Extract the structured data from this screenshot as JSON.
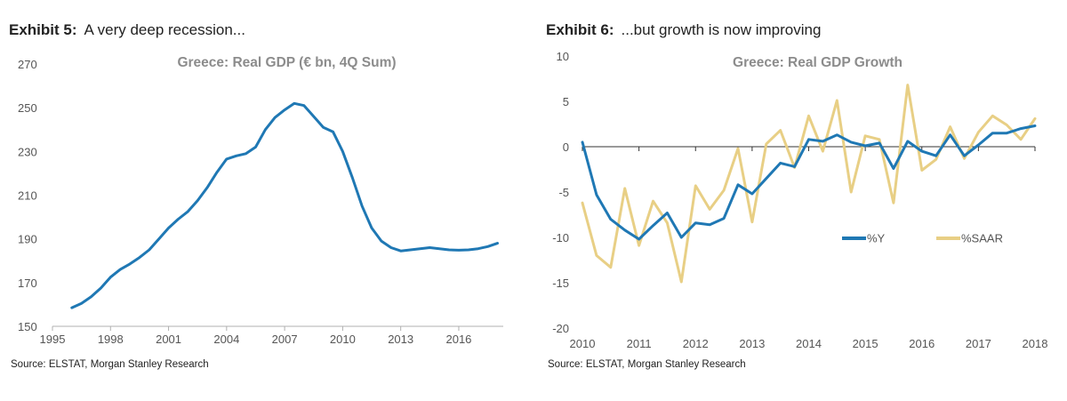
{
  "exhibits": [
    {
      "number": "Exhibit 5:",
      "caption": "A very deep recession...",
      "source": "Source: ELSTAT, Morgan Stanley Research"
    },
    {
      "number": "Exhibit 6:",
      "caption": "...but growth is now improving",
      "source": "Source: ELSTAT, Morgan Stanley Research"
    }
  ],
  "chart_data": [
    {
      "type": "line",
      "title": "Greece: Real GDP (€ bn, 4Q Sum)",
      "xlabel": "",
      "ylabel": "",
      "xlim": [
        1995,
        2018.3
      ],
      "ylim": [
        150,
        270
      ],
      "yticks": [
        150,
        170,
        190,
        210,
        230,
        250,
        270
      ],
      "xticks": [
        1995,
        1998,
        2001,
        2004,
        2007,
        2010,
        2013,
        2016
      ],
      "grid": false,
      "colors": {
        "line": "#1f78b4",
        "axis": "#b0b0b0"
      },
      "series": [
        {
          "color": "#1f78b4",
          "x": [
            1996.0,
            1996.5,
            1997.0,
            1997.5,
            1998.0,
            1998.5,
            1999.0,
            1999.5,
            2000.0,
            2000.5,
            2001.0,
            2001.5,
            2002.0,
            2002.5,
            2003.0,
            2003.5,
            2004.0,
            2004.5,
            2005.0,
            2005.5,
            2006.0,
            2006.5,
            2007.0,
            2007.5,
            2008.0,
            2008.5,
            2009.0,
            2009.5,
            2010.0,
            2010.5,
            2011.0,
            2011.5,
            2012.0,
            2012.5,
            2013.0,
            2013.5,
            2014.0,
            2014.5,
            2015.0,
            2015.5,
            2016.0,
            2016.5,
            2017.0,
            2017.5,
            2018.0
          ],
          "values": [
            158.5,
            160.5,
            163.5,
            167.5,
            172.5,
            176.0,
            178.5,
            181.5,
            185.0,
            190.0,
            195.0,
            199.0,
            202.5,
            207.5,
            213.5,
            220.5,
            226.5,
            228.0,
            229.0,
            232.0,
            240.0,
            245.5,
            249.0,
            252.0,
            251.0,
            246.0,
            241.0,
            239.0,
            230.0,
            218.0,
            205.0,
            195.0,
            189.0,
            186.0,
            184.5,
            185.0,
            185.5,
            186.0,
            185.5,
            185.0,
            184.8,
            185.0,
            185.5,
            186.5,
            188.0
          ]
        }
      ]
    },
    {
      "type": "line",
      "title": "Greece: Real GDP Growth",
      "xlabel": "",
      "ylabel": "",
      "xlim": [
        2010,
        2018
      ],
      "ylim": [
        -20,
        10
      ],
      "yticks": [
        -20,
        -15,
        -10,
        -5,
        0,
        5,
        10
      ],
      "xticks": [
        2010,
        2011,
        2012,
        2013,
        2014,
        2015,
        2016,
        2017,
        2018
      ],
      "grid": false,
      "legend": "center-right",
      "series": [
        {
          "name": "%Y",
          "color": "#1f78b4",
          "x": [
            2010.0,
            2010.25,
            2010.5,
            2010.75,
            2011.0,
            2011.25,
            2011.5,
            2011.75,
            2012.0,
            2012.25,
            2012.5,
            2012.75,
            2013.0,
            2013.25,
            2013.5,
            2013.75,
            2014.0,
            2014.25,
            2014.5,
            2014.75,
            2015.0,
            2015.25,
            2015.5,
            2015.75,
            2016.0,
            2016.25,
            2016.5,
            2016.75,
            2017.0,
            2017.25,
            2017.5,
            2017.75,
            2018.0
          ],
          "values": [
            0.5,
            -5.3,
            -8.0,
            -9.2,
            -10.2,
            -8.7,
            -7.3,
            -10.0,
            -8.4,
            -8.6,
            -7.9,
            -4.2,
            -5.2,
            -3.5,
            -1.8,
            -2.2,
            0.8,
            0.6,
            1.3,
            0.5,
            0.1,
            0.4,
            -2.4,
            0.6,
            -0.5,
            -1.0,
            1.3,
            -1.0,
            0.2,
            1.5,
            1.5,
            2.0,
            2.3
          ]
        },
        {
          "name": "%SAAR",
          "color": "#e8cf85",
          "x": [
            2010.0,
            2010.25,
            2010.5,
            2010.75,
            2011.0,
            2011.25,
            2011.5,
            2011.75,
            2012.0,
            2012.25,
            2012.5,
            2012.75,
            2013.0,
            2013.25,
            2013.5,
            2013.75,
            2014.0,
            2014.25,
            2014.5,
            2014.75,
            2015.0,
            2015.25,
            2015.5,
            2015.75,
            2016.0,
            2016.25,
            2016.5,
            2016.75,
            2017.0,
            2017.25,
            2017.5,
            2017.75,
            2018.0
          ],
          "values": [
            -6.2,
            -12.0,
            -13.3,
            -4.6,
            -10.9,
            -6.0,
            -8.4,
            -14.9,
            -4.3,
            -6.9,
            -4.8,
            -0.2,
            -8.3,
            0.3,
            1.8,
            -2.3,
            3.4,
            -0.5,
            5.1,
            -5.0,
            1.2,
            0.8,
            -6.2,
            6.8,
            -2.6,
            -1.4,
            2.2,
            -1.3,
            1.6,
            3.4,
            2.4,
            0.8,
            3.1
          ]
        }
      ]
    }
  ]
}
